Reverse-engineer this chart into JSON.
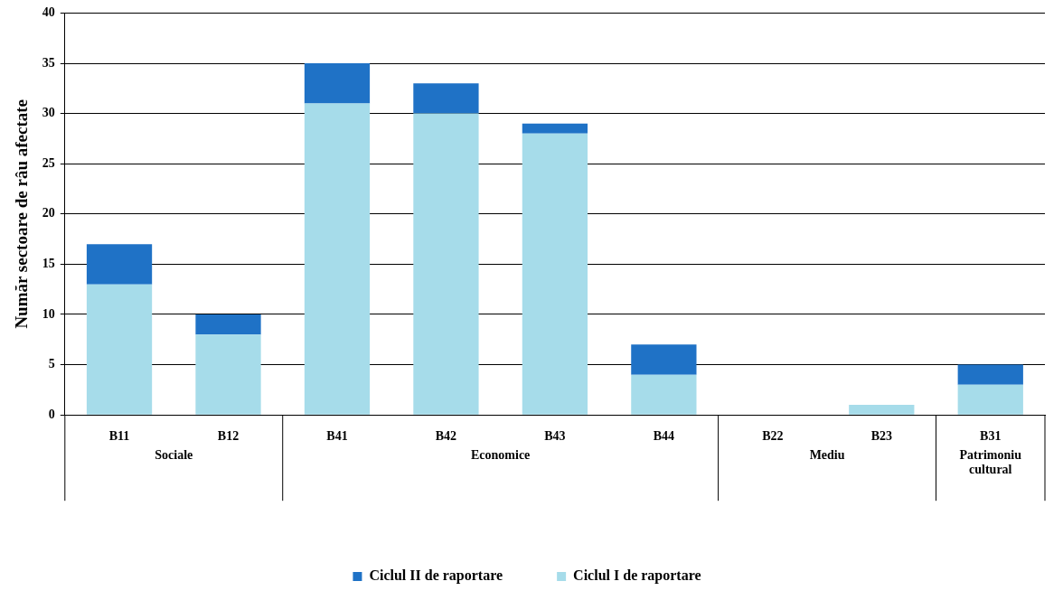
{
  "chart_data": {
    "type": "bar",
    "stacked": true,
    "ylabel": "Număr sectoare de râu afectate",
    "categories": [
      "B11",
      "B12",
      "B41",
      "B42",
      "B43",
      "B44",
      "B22",
      "B23",
      "B31"
    ],
    "series": [
      {
        "name": "Ciclul I de raportare",
        "color": "#a6dcea",
        "values": [
          13,
          8,
          31,
          30,
          28,
          4,
          0,
          1,
          3
        ]
      },
      {
        "name": "Ciclul II de raportare",
        "color": "#1f72c6",
        "values": [
          4,
          2,
          4,
          3,
          1,
          3,
          0,
          0,
          2
        ]
      }
    ],
    "ylim": [
      0,
      40
    ],
    "yticks": [
      0,
      5,
      10,
      15,
      20,
      25,
      30,
      35,
      40
    ],
    "grid": "y",
    "legend": "bottom",
    "annotations": [
      "Sociale",
      "Economice",
      "Mediu",
      "Patrimoniu cultural"
    ]
  }
}
